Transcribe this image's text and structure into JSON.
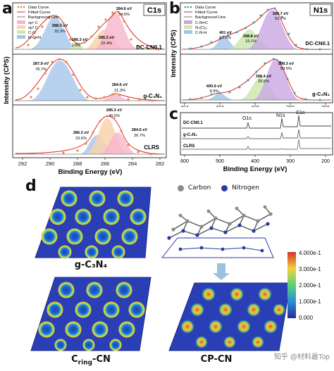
{
  "panel_letters": {
    "a": "a",
    "b": "b",
    "c": "c",
    "d": "d"
  },
  "panel_a": {
    "tag": "C1s",
    "legend": [
      "Data Curve",
      "Fitted Curve",
      "Background Line",
      "sp² C",
      "sp³ C",
      "C-O",
      "N-C=N"
    ],
    "ylabel": "Intensity (CPS)",
    "xlabel": "Binding Energy (eV)",
    "xticks": [
      "292",
      "290",
      "288",
      "286",
      "284",
      "282"
    ],
    "sub1": {
      "sample": "DC-CN0.1",
      "peaks": [
        {
          "energy": "288.3 eV",
          "pct": "33.3%"
        },
        {
          "energy": "286.3 eV",
          "pct": "1.6%"
        },
        {
          "energy": "285.3 eV",
          "pct": "22.4%"
        },
        {
          "energy": "284.6 eV",
          "pct": "54.6%"
        }
      ]
    },
    "sub2": {
      "sample": "g-C₃N₄",
      "peaks": [
        {
          "energy": "287.9 eV",
          "pct": "78.7%"
        },
        {
          "energy": "284.6 eV",
          "pct": "21.3%"
        }
      ]
    },
    "sub3": {
      "sample": "CLRS",
      "peaks": [
        {
          "energy": "285.3 eV",
          "pct": "49.5%"
        },
        {
          "energy": "286.3 eV",
          "pct": "23.6%"
        },
        {
          "energy": "284.6 eV",
          "pct": "26.7%"
        }
      ]
    }
  },
  "panel_b": {
    "tag": "N1s",
    "legend": [
      "Data Curve",
      "Fitted Curve",
      "Background Line",
      "C-N=C",
      "N-(C)₃",
      "C-N-H"
    ],
    "xticks": [
      "404",
      "402",
      "400",
      "398",
      "396"
    ],
    "sub1": {
      "sample": "DC-CN0.1",
      "peaks": [
        {
          "energy": "398.7 eV",
          "pct": "63.7%"
        },
        {
          "energy": "401 eV",
          "pct": "17.2%"
        },
        {
          "energy": "398.8 eV",
          "pct": "19.1%"
        }
      ]
    },
    "sub2": {
      "sample": "g-C₃N₄",
      "peaks": [
        {
          "energy": "398.4 eV",
          "pct": "25.6%"
        },
        {
          "energy": "398.3 eV",
          "pct": "59.5%"
        },
        {
          "energy": "400.9 eV",
          "pct": "8.9%"
        }
      ]
    }
  },
  "panel_c": {
    "samples": [
      "DC-CN0.1",
      "g-C₃N₄",
      "CLRS"
    ],
    "peaks": [
      "O1s",
      "N1s",
      "C1s"
    ],
    "xticks": [
      "600",
      "500",
      "400",
      "300",
      "200"
    ],
    "xlabel": "Binding Energy (eV)"
  },
  "panel_d": {
    "legend": {
      "carbon": "Carbon",
      "nitrogen": "Nitrogen"
    },
    "labels": {
      "gcn": "g-C₃N₄",
      "cring": "C",
      "cring_sub": "ring",
      "cring_rest": "-CN",
      "cpcn": "CP-CN"
    },
    "colorbar": [
      "4.000e-1",
      "3.000e-1",
      "2.000e-1",
      "1.000e-1",
      "0.000"
    ],
    "watermark": "知乎 @材料最Top"
  },
  "colors": {
    "pink": "#f7b5cc",
    "purple": "#c9a6e2",
    "peach": "#f9d2ae",
    "blue": "#9fc3ea",
    "green": "#cfe8b0",
    "teal": "#8ecfd0",
    "data_orange": "#e68a3d",
    "data_teal": "#3aa0a8",
    "fit": "#e02424",
    "bg": "#7a7a7a"
  }
}
